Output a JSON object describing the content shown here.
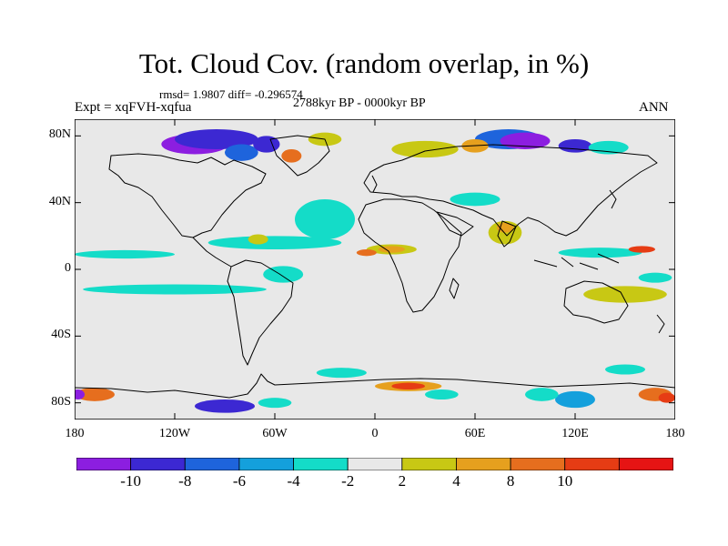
{
  "title": "Tot. Cloud Cov. (random overlap, in %)",
  "stats": "rmsd= 1.9807 diff= -0.296574",
  "experiment": "Expt = xqFVH-xqfua",
  "period": "2788kyr BP - 0000kyr BP",
  "season": "ANN",
  "map": {
    "projection": "cylindrical-equidistant",
    "lon_range": [
      -180,
      180
    ],
    "lat_range": [
      -90,
      90
    ],
    "background": "#e8e8e8",
    "coastline_color": "#000000",
    "lat_ticks": [
      {
        "value": 80,
        "label": "80N"
      },
      {
        "value": 40,
        "label": "40N"
      },
      {
        "value": 0,
        "label": "0"
      },
      {
        "value": -40,
        "label": "40S"
      },
      {
        "value": -80,
        "label": "80S"
      }
    ],
    "lon_ticks": [
      {
        "value": -180,
        "label": "180"
      },
      {
        "value": -120,
        "label": "120W"
      },
      {
        "value": -60,
        "label": "60W"
      },
      {
        "value": 0,
        "label": "0"
      },
      {
        "value": 60,
        "label": "60E"
      },
      {
        "value": 120,
        "label": "120E"
      },
      {
        "value": 180,
        "label": "180"
      }
    ]
  },
  "colorbar": {
    "colors": [
      "#8c1ee0",
      "#3c28d2",
      "#1e64dc",
      "#14a0dc",
      "#14dcc8",
      "#e8e8e8",
      "#c8c814",
      "#e6a01e",
      "#e66e1e",
      "#e63c14",
      "#e61414"
    ],
    "labels": [
      "-10",
      "-8",
      "-6",
      "-4",
      "-2",
      "2",
      "4",
      "8",
      "10"
    ]
  },
  "chart_data": {
    "type": "heatmap",
    "title": "Tot. Cloud Cov. (random overlap, in %)",
    "variable": "total cloud cover difference (%)",
    "levels": [
      -10,
      -8,
      -6,
      -4,
      -2,
      2,
      4,
      8,
      10
    ],
    "patches": [
      {
        "lon": -30,
        "lat": 30,
        "rlon": 18,
        "rlat": 12,
        "level": 4
      },
      {
        "lon": -60,
        "lat": 16,
        "rlon": 40,
        "rlat": 4,
        "level": 4
      },
      {
        "lon": -150,
        "lat": 9,
        "rlon": 30,
        "rlat": 2.5,
        "level": 4
      },
      {
        "lon": -120,
        "lat": -12,
        "rlon": 55,
        "rlat": 3,
        "level": 4
      },
      {
        "lon": -55,
        "lat": -3,
        "rlon": 12,
        "rlat": 5,
        "level": 4
      },
      {
        "lon": 10,
        "lat": 12,
        "rlon": 15,
        "rlat": 3,
        "level": 6
      },
      {
        "lon": 10,
        "lat": 12,
        "rlon": 8,
        "rlat": 2,
        "level": 7
      },
      {
        "lon": -5,
        "lat": 10,
        "rlon": 6,
        "rlat": 2,
        "level": 8
      },
      {
        "lon": -70,
        "lat": 18,
        "rlon": 6,
        "rlat": 3,
        "level": 6
      },
      {
        "lon": 78,
        "lat": 22,
        "rlon": 10,
        "rlat": 7,
        "level": 6
      },
      {
        "lon": 78,
        "lat": 25,
        "rlon": 5,
        "rlat": 3,
        "level": 7
      },
      {
        "lon": 60,
        "lat": 42,
        "rlon": 15,
        "rlat": 4,
        "level": 4
      },
      {
        "lon": 135,
        "lat": 10,
        "rlon": 25,
        "rlat": 3,
        "level": 4
      },
      {
        "lon": 160,
        "lat": 12,
        "rlon": 8,
        "rlat": 2,
        "level": 9
      },
      {
        "lon": 150,
        "lat": -15,
        "rlon": 25,
        "rlat": 5,
        "level": 6
      },
      {
        "lon": 168,
        "lat": -5,
        "rlon": 10,
        "rlat": 3,
        "level": 4
      },
      {
        "lon": -108,
        "lat": 75,
        "rlon": 20,
        "rlat": 6,
        "level": 0
      },
      {
        "lon": -95,
        "lat": 78,
        "rlon": 25,
        "rlat": 6,
        "level": 1
      },
      {
        "lon": -80,
        "lat": 70,
        "rlon": 10,
        "rlat": 5,
        "level": 2
      },
      {
        "lon": -65,
        "lat": 75,
        "rlon": 8,
        "rlat": 5,
        "level": 1
      },
      {
        "lon": -50,
        "lat": 68,
        "rlon": 6,
        "rlat": 4,
        "level": 8
      },
      {
        "lon": -30,
        "lat": 78,
        "rlon": 10,
        "rlat": 4,
        "level": 6
      },
      {
        "lon": 30,
        "lat": 72,
        "rlon": 20,
        "rlat": 5,
        "level": 6
      },
      {
        "lon": 80,
        "lat": 78,
        "rlon": 20,
        "rlat": 6,
        "level": 2
      },
      {
        "lon": 90,
        "lat": 77,
        "rlon": 15,
        "rlat": 5,
        "level": 0
      },
      {
        "lon": 120,
        "lat": 74,
        "rlon": 10,
        "rlat": 4,
        "level": 1
      },
      {
        "lon": 140,
        "lat": 73,
        "rlon": 12,
        "rlat": 4,
        "level": 4
      },
      {
        "lon": 60,
        "lat": 74,
        "rlon": 8,
        "rlat": 4,
        "level": 7
      },
      {
        "lon": -168,
        "lat": -75,
        "rlon": 12,
        "rlat": 4,
        "level": 8
      },
      {
        "lon": -178,
        "lat": -75,
        "rlon": 4,
        "rlat": 3,
        "level": 0
      },
      {
        "lon": -90,
        "lat": -82,
        "rlon": 18,
        "rlat": 4,
        "level": 1
      },
      {
        "lon": -60,
        "lat": -80,
        "rlon": 10,
        "rlat": 3,
        "level": 4
      },
      {
        "lon": 20,
        "lat": -70,
        "rlon": 20,
        "rlat": 3,
        "level": 7
      },
      {
        "lon": 20,
        "lat": -70,
        "rlon": 10,
        "rlat": 2,
        "level": 9
      },
      {
        "lon": 40,
        "lat": -75,
        "rlon": 10,
        "rlat": 3,
        "level": 4
      },
      {
        "lon": 120,
        "lat": -78,
        "rlon": 12,
        "rlat": 5,
        "level": 3
      },
      {
        "lon": 100,
        "lat": -75,
        "rlon": 10,
        "rlat": 4,
        "level": 4
      },
      {
        "lon": 168,
        "lat": -75,
        "rlon": 10,
        "rlat": 4,
        "level": 8
      },
      {
        "lon": 175,
        "lat": -77,
        "rlon": 5,
        "rlat": 3,
        "level": 9
      },
      {
        "lon": 150,
        "lat": -60,
        "rlon": 12,
        "rlat": 3,
        "level": 4
      },
      {
        "lon": -20,
        "lat": -62,
        "rlon": 15,
        "rlat": 3,
        "level": 4
      }
    ]
  }
}
